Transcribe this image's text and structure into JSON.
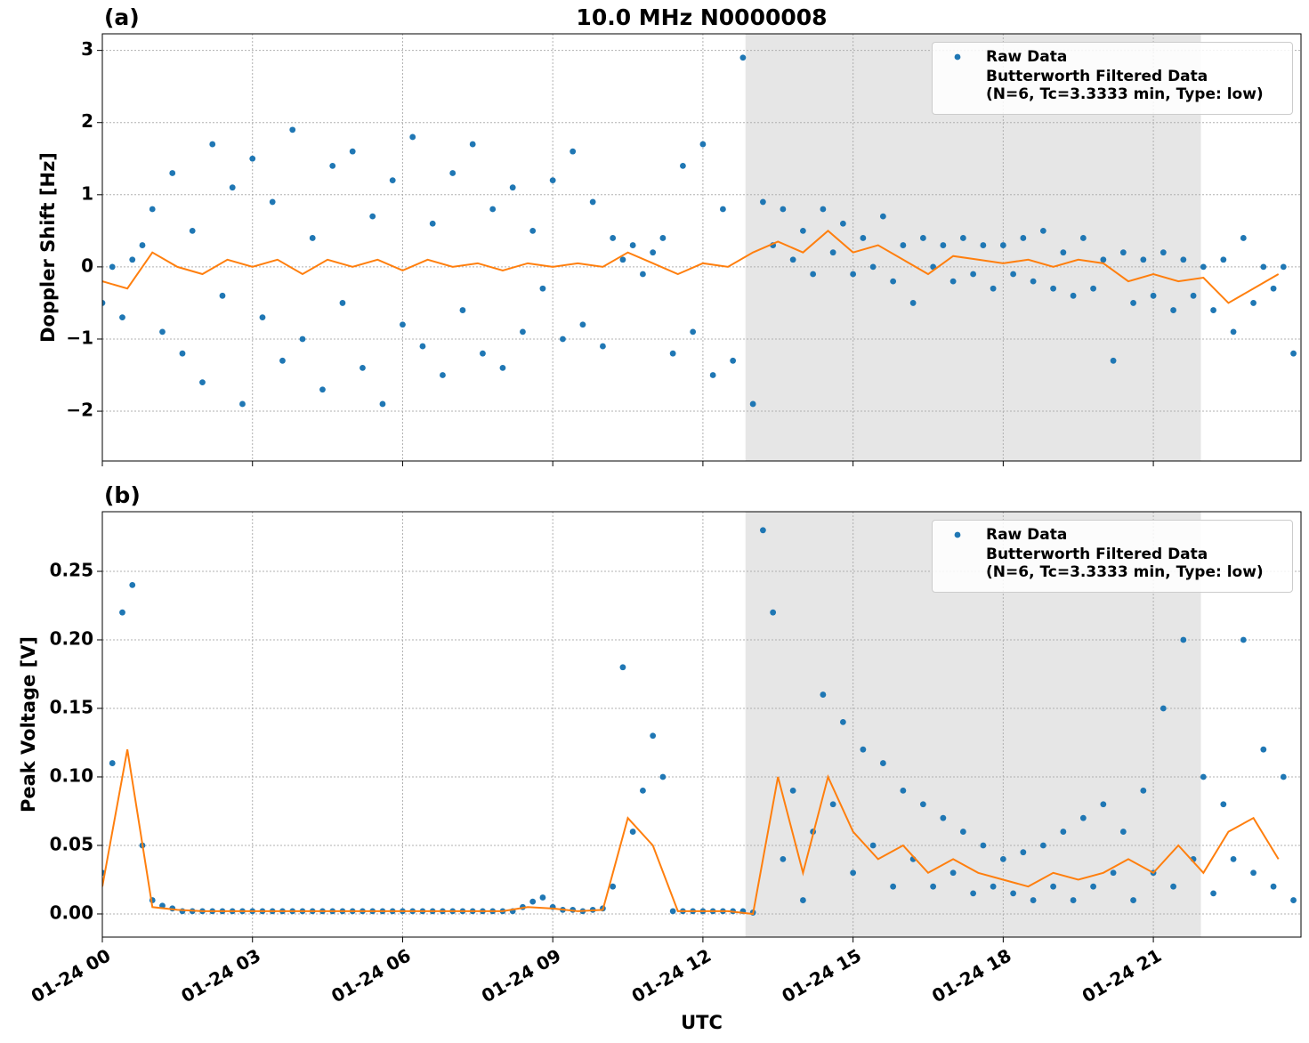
{
  "chart_data": [
    {
      "type": "scatter",
      "title": "10.0 MHz N0000008",
      "panel_label": "(a)",
      "ylabel": "Doppler Shift [Hz]",
      "xlim": [
        0,
        23.95
      ],
      "ylim": [
        -2.69,
        3.23
      ],
      "yticks": [
        {
          "value": -2,
          "label": "−2"
        },
        {
          "value": -1,
          "label": "−1"
        },
        0,
        1,
        2,
        3
      ],
      "grid": true,
      "legend": "upper right",
      "shaded_span": [
        12.85,
        21.95
      ],
      "shade_color": "#e6e6e6",
      "series": [
        {
          "name": "Raw Data",
          "color": "#1f77b4",
          "x": [
            0,
            0.2,
            0.4,
            0.6,
            0.8,
            1,
            1.2,
            1.4,
            1.6,
            1.8,
            2,
            2.2,
            2.4,
            2.6,
            2.8,
            3,
            3.2,
            3.4,
            3.6,
            3.8,
            4,
            4.2,
            4.4,
            4.6,
            4.8,
            5,
            5.2,
            5.4,
            5.6,
            5.8,
            6,
            6.2,
            6.4,
            6.6,
            6.8,
            7,
            7.2,
            7.4,
            7.6,
            7.8,
            8,
            8.2,
            8.4,
            8.6,
            8.8,
            9,
            9.2,
            9.4,
            9.6,
            9.8,
            10,
            10.2,
            10.4,
            10.6,
            10.8,
            11,
            11.2,
            11.4,
            11.6,
            11.8,
            12,
            12.2,
            12.4,
            12.6,
            12.8,
            13,
            13.2,
            13.4,
            13.6,
            13.8,
            14,
            14.2,
            14.4,
            14.6,
            14.8,
            15,
            15.2,
            15.4,
            15.6,
            15.8,
            16,
            16.2,
            16.4,
            16.6,
            16.8,
            17,
            17.2,
            17.4,
            17.6,
            17.8,
            18,
            18.2,
            18.4,
            18.6,
            18.8,
            19,
            19.2,
            19.4,
            19.6,
            19.8,
            20,
            20.2,
            20.4,
            20.6,
            20.8,
            21,
            21.2,
            21.4,
            21.6,
            21.8,
            22,
            22.2,
            22.4,
            22.6,
            22.8,
            23,
            23.2,
            23.4,
            23.6,
            23.8
          ],
          "values": [
            -0.5,
            0,
            -0.7,
            0.1,
            0.3,
            0.8,
            -0.9,
            1.3,
            -1.2,
            0.5,
            -1.6,
            1.7,
            -0.4,
            1.1,
            -1.9,
            1.5,
            -0.7,
            0.9,
            -1.3,
            1.9,
            -1,
            0.4,
            -1.7,
            1.4,
            -0.5,
            1.6,
            -1.4,
            0.7,
            -1.9,
            1.2,
            -0.8,
            1.8,
            -1.1,
            0.6,
            -1.5,
            1.3,
            -0.6,
            1.7,
            -1.2,
            0.8,
            -1.4,
            1.1,
            -0.9,
            0.5,
            -0.3,
            1.2,
            -1,
            1.6,
            -0.8,
            0.9,
            -1.1,
            0.4,
            0.1,
            0.3,
            -0.1,
            0.2,
            0.4,
            -1.2,
            1.4,
            -0.9,
            1.7,
            -1.5,
            0.8,
            -1.3,
            2.9,
            -1.9,
            0.9,
            0.3,
            0.8,
            0.1,
            0.5,
            -0.1,
            0.8,
            0.2,
            0.6,
            -0.1,
            0.4,
            0,
            0.7,
            -0.2,
            0.3,
            -0.5,
            0.4,
            0,
            0.3,
            -0.2,
            0.4,
            -0.1,
            0.3,
            -0.3,
            0.3,
            -0.1,
            0.4,
            -0.2,
            0.5,
            -0.3,
            0.2,
            -0.4,
            0.4,
            -0.3,
            0.1,
            -1.3,
            0.2,
            -0.5,
            0.1,
            -0.4,
            0.2,
            -0.6,
            0.1,
            -0.4,
            0,
            -0.6,
            0.1,
            -0.9,
            0.4,
            -0.5,
            0,
            -0.3,
            0,
            -1.2
          ]
        },
        {
          "name": "Butterworth Filtered Data\n(N=6, Tc=3.3333 min, Type: low)",
          "color": "#ff7f0e",
          "x": [
            0,
            0.5,
            1,
            1.5,
            2,
            2.5,
            3,
            3.5,
            4,
            4.5,
            5,
            5.5,
            6,
            6.5,
            7,
            7.5,
            8,
            8.5,
            9,
            9.5,
            10,
            10.5,
            11,
            11.5,
            12,
            12.5,
            13,
            13.5,
            14,
            14.5,
            15,
            15.5,
            16,
            16.5,
            17,
            17.5,
            18,
            18.5,
            19,
            19.5,
            20,
            20.5,
            21,
            21.5,
            22,
            22.5,
            23,
            23.5
          ],
          "values": [
            -0.2,
            -0.3,
            0.2,
            0,
            -0.1,
            0.1,
            0,
            0.1,
            -0.1,
            0.1,
            0,
            0.1,
            -0.05,
            0.1,
            0,
            0.05,
            -0.05,
            0.05,
            0,
            0.05,
            0,
            0.2,
            0.05,
            -0.1,
            0.05,
            0,
            0.2,
            0.35,
            0.2,
            0.5,
            0.2,
            0.3,
            0.1,
            -0.1,
            0.15,
            0.1,
            0.05,
            0.1,
            0,
            0.1,
            0.05,
            -0.2,
            -0.1,
            -0.2,
            -0.15,
            -0.5,
            -0.3,
            -0.1
          ]
        }
      ]
    },
    {
      "type": "scatter",
      "panel_label": "(b)",
      "ylabel": "Peak Voltage [V]",
      "xlabel": "UTC",
      "xlim": [
        0,
        23.95
      ],
      "ylim": [
        -0.0169,
        0.2935
      ],
      "xticks": [
        {
          "value": 0,
          "label": "01-24 00"
        },
        {
          "value": 3,
          "label": "01-24 03"
        },
        {
          "value": 6,
          "label": "01-24 06"
        },
        {
          "value": 9,
          "label": "01-24 09"
        },
        {
          "value": 12,
          "label": "01-24 12"
        },
        {
          "value": 15,
          "label": "01-24 15"
        },
        {
          "value": 18,
          "label": "01-24 18"
        },
        {
          "value": 21,
          "label": "01-24 21"
        }
      ],
      "yticks": [
        {
          "value": 0,
          "label": "0.00"
        },
        {
          "value": 0.05,
          "label": "0.05"
        },
        {
          "value": 0.1,
          "label": "0.10"
        },
        {
          "value": 0.15,
          "label": "0.15"
        },
        {
          "value": 0.2,
          "label": "0.20"
        },
        {
          "value": 0.25,
          "label": "0.25"
        }
      ],
      "grid": true,
      "legend": "upper right",
      "shaded_span": [
        12.85,
        21.95
      ],
      "shade_color": "#e6e6e6",
      "series": [
        {
          "name": "Raw Data",
          "color": "#1f77b4",
          "x": [
            0,
            0.2,
            0.4,
            0.6,
            0.8,
            1,
            1.2,
            1.4,
            1.6,
            1.8,
            2,
            2.2,
            2.4,
            2.6,
            2.8,
            3,
            3.2,
            3.4,
            3.6,
            3.8,
            4,
            4.2,
            4.4,
            4.6,
            4.8,
            5,
            5.2,
            5.4,
            5.6,
            5.8,
            6,
            6.2,
            6.4,
            6.6,
            6.8,
            7,
            7.2,
            7.4,
            7.6,
            7.8,
            8,
            8.2,
            8.4,
            8.6,
            8.8,
            9,
            9.2,
            9.4,
            9.6,
            9.8,
            10,
            10.2,
            10.4,
            10.6,
            10.8,
            11,
            11.2,
            11.4,
            11.6,
            11.8,
            12,
            12.2,
            12.4,
            12.6,
            12.8,
            13,
            13.2,
            13.4,
            13.6,
            13.8,
            14,
            14.2,
            14.4,
            14.6,
            14.8,
            15,
            15.2,
            15.4,
            15.6,
            15.8,
            16,
            16.2,
            16.4,
            16.6,
            16.8,
            17,
            17.2,
            17.4,
            17.6,
            17.8,
            18,
            18.2,
            18.4,
            18.6,
            18.8,
            19,
            19.2,
            19.4,
            19.6,
            19.8,
            20,
            20.2,
            20.4,
            20.6,
            20.8,
            21,
            21.2,
            21.4,
            21.6,
            21.8,
            22,
            22.2,
            22.4,
            22.6,
            22.8,
            23,
            23.2,
            23.4,
            23.6,
            23.8
          ],
          "values": [
            0.03,
            0.11,
            0.22,
            0.24,
            0.05,
            0.01,
            0.006,
            0.004,
            0.002,
            0.002,
            0.002,
            0.002,
            0.002,
            0.002,
            0.002,
            0.002,
            0.002,
            0.002,
            0.002,
            0.002,
            0.002,
            0.002,
            0.002,
            0.002,
            0.002,
            0.002,
            0.002,
            0.002,
            0.002,
            0.002,
            0.002,
            0.002,
            0.002,
            0.002,
            0.002,
            0.002,
            0.002,
            0.002,
            0.002,
            0.002,
            0.002,
            0.002,
            0.005,
            0.009,
            0.012,
            0.005,
            0.003,
            0.003,
            0.002,
            0.003,
            0.004,
            0.02,
            0.18,
            0.06,
            0.09,
            0.13,
            0.1,
            0.002,
            0.002,
            0.002,
            0.002,
            0.002,
            0.002,
            0.002,
            0.002,
            0.001,
            0.28,
            0.22,
            0.04,
            0.09,
            0.01,
            0.06,
            0.16,
            0.08,
            0.14,
            0.03,
            0.12,
            0.05,
            0.11,
            0.02,
            0.09,
            0.04,
            0.08,
            0.02,
            0.07,
            0.03,
            0.06,
            0.015,
            0.05,
            0.02,
            0.04,
            0.015,
            0.045,
            0.01,
            0.05,
            0.02,
            0.06,
            0.01,
            0.07,
            0.02,
            0.08,
            0.03,
            0.06,
            0.01,
            0.09,
            0.03,
            0.15,
            0.02,
            0.2,
            0.04,
            0.1,
            0.015,
            0.08,
            0.04,
            0.2,
            0.03,
            0.12,
            0.02,
            0.1,
            0.01
          ]
        },
        {
          "name": "Butterworth Filtered Data\n(N=6, Tc=3.3333 min, Type: low)",
          "color": "#ff7f0e",
          "x": [
            0,
            0.5,
            1,
            1.5,
            2,
            2.5,
            3,
            3.5,
            4,
            4.5,
            5,
            5.5,
            6,
            6.5,
            7,
            7.5,
            8,
            8.5,
            9,
            9.5,
            10,
            10.5,
            11,
            11.5,
            12,
            12.5,
            13,
            13.5,
            14,
            14.5,
            15,
            15.5,
            16,
            16.5,
            17,
            17.5,
            18,
            18.5,
            19,
            19.5,
            20,
            20.5,
            21,
            21.5,
            22,
            22.5,
            23,
            23.5
          ],
          "values": [
            0.02,
            0.12,
            0.005,
            0.003,
            0.002,
            0.002,
            0.002,
            0.002,
            0.002,
            0.002,
            0.002,
            0.002,
            0.002,
            0.002,
            0.002,
            0.002,
            0.002,
            0.005,
            0.004,
            0.002,
            0.003,
            0.07,
            0.05,
            0.002,
            0.002,
            0.002,
            0,
            0.1,
            0.03,
            0.1,
            0.06,
            0.04,
            0.05,
            0.03,
            0.04,
            0.03,
            0.025,
            0.02,
            0.03,
            0.025,
            0.03,
            0.04,
            0.03,
            0.05,
            0.03,
            0.06,
            0.07,
            0.04
          ]
        }
      ]
    }
  ]
}
